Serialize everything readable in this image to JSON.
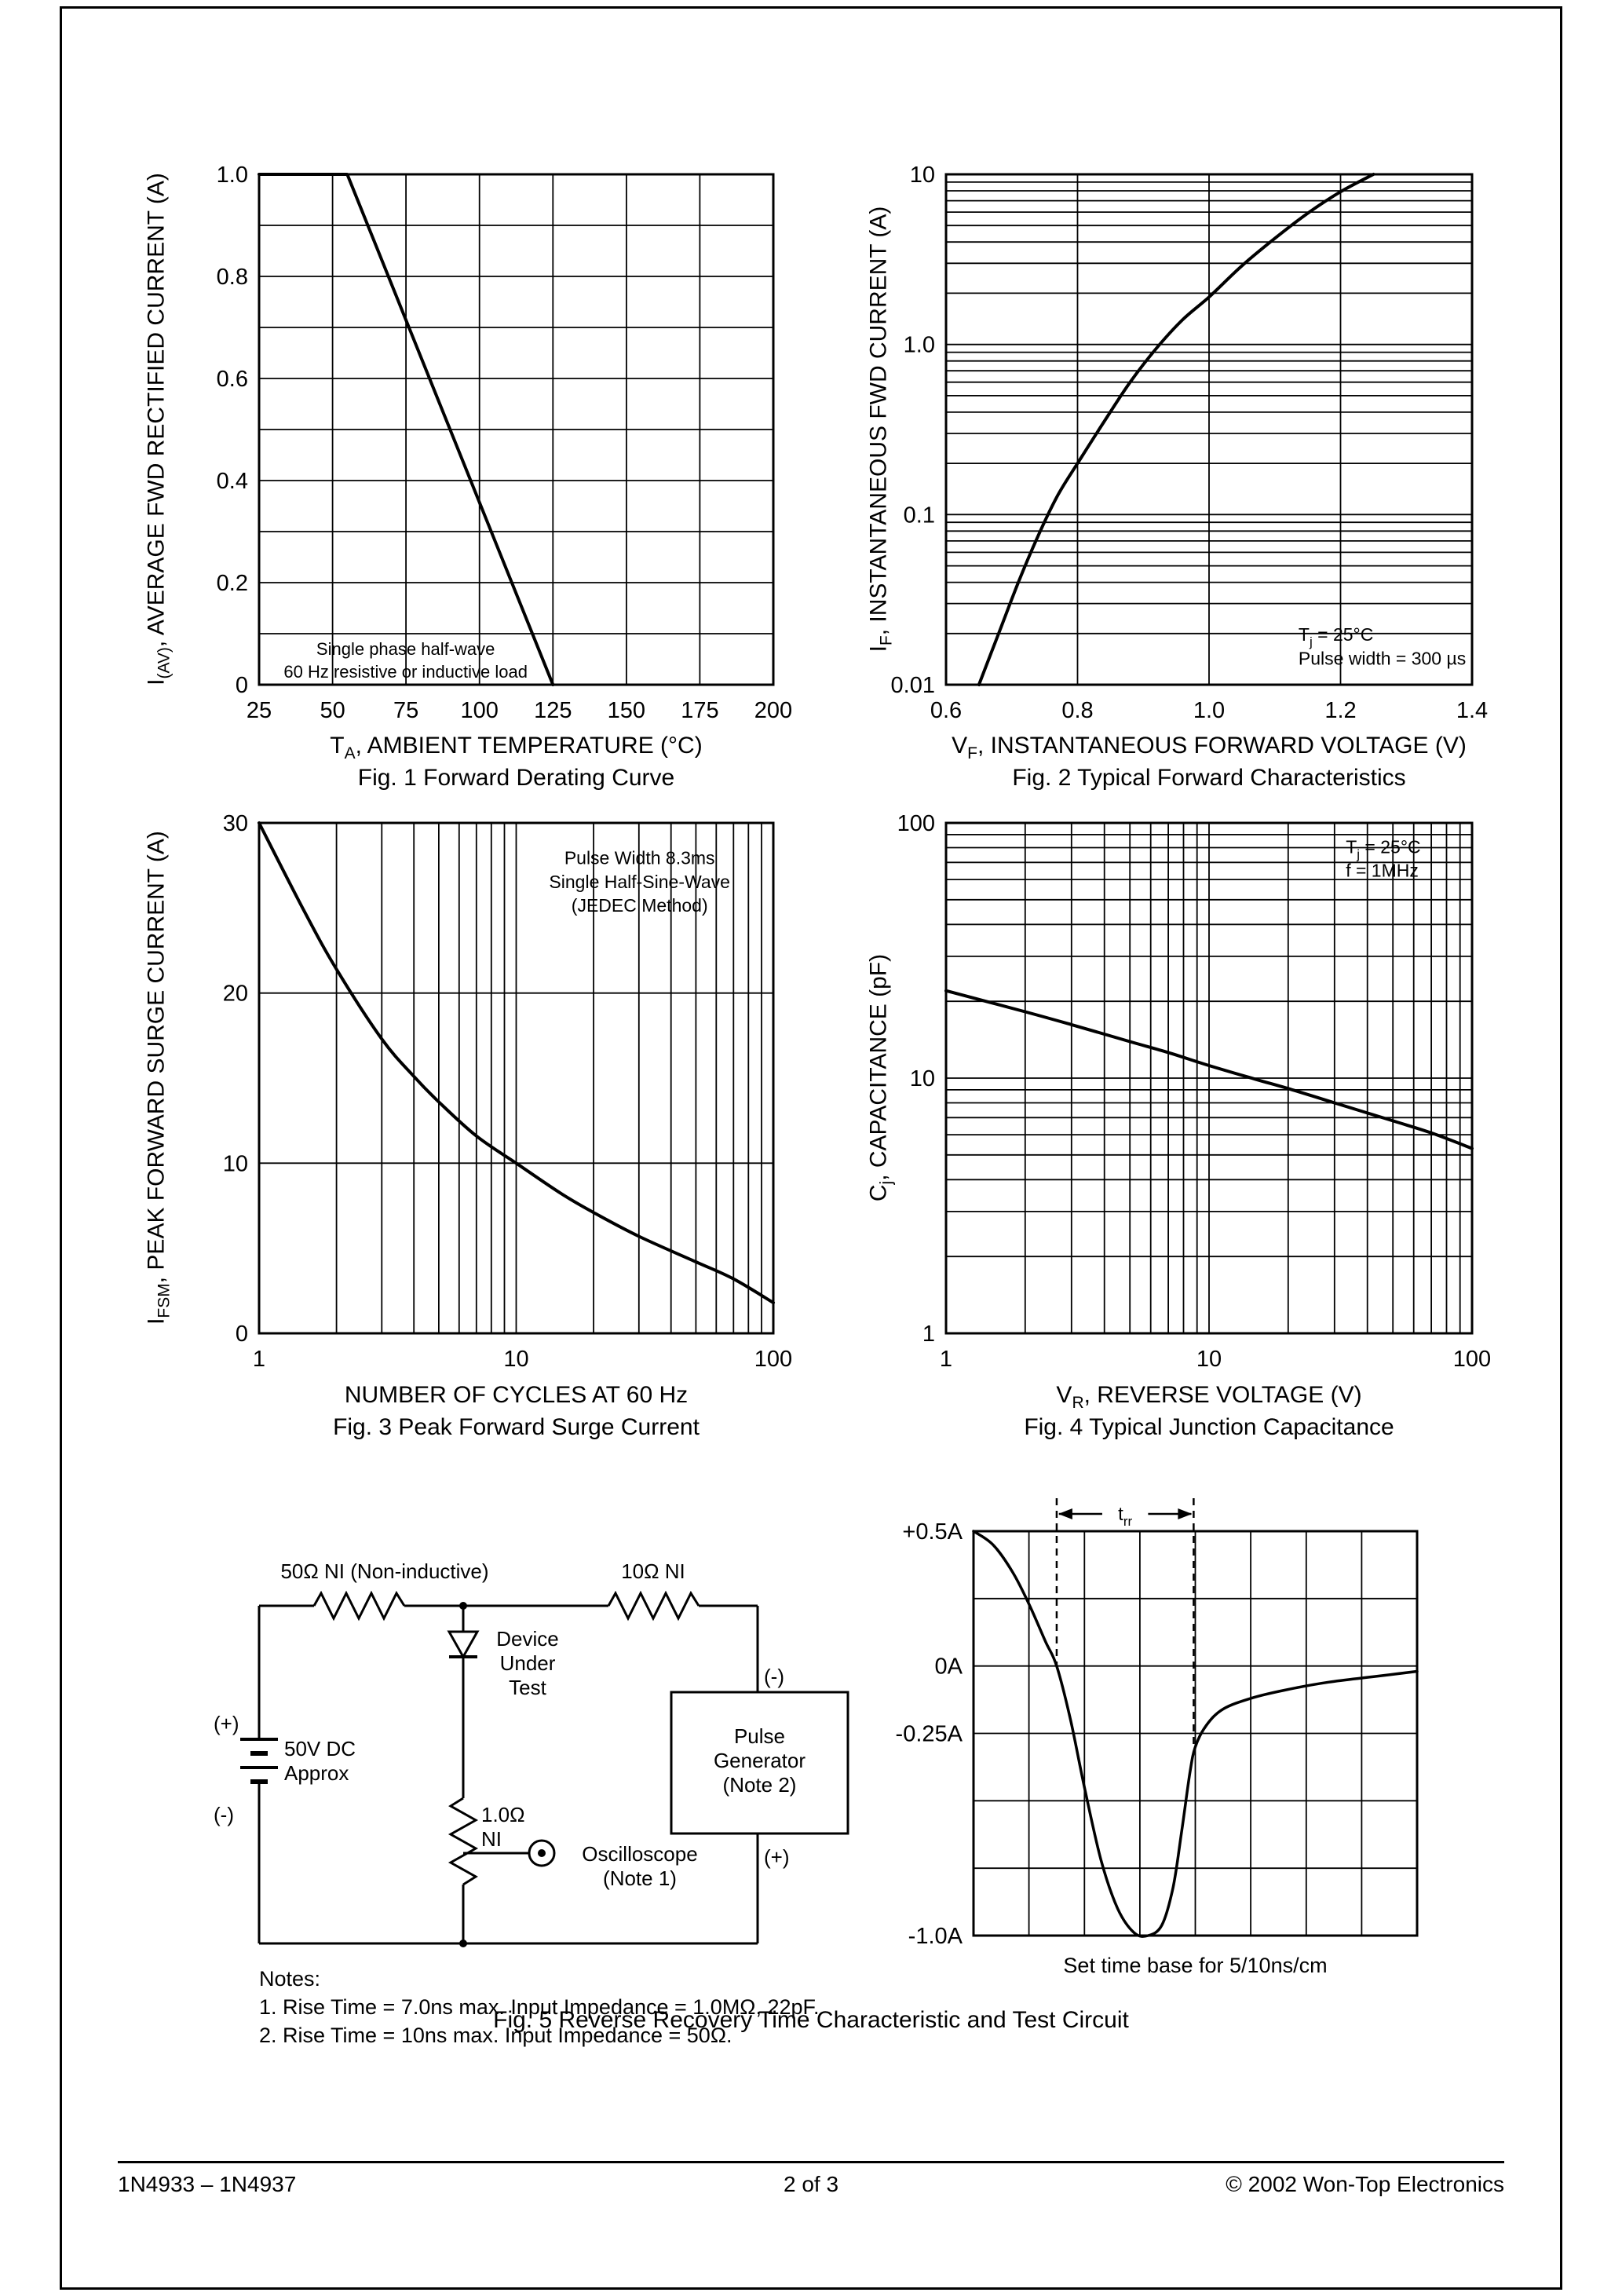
{
  "page": {
    "footer_left": "1N4933 – 1N4937",
    "footer_center": "2 of 3",
    "footer_right": "© 2002 Won-Top Electronics"
  },
  "fig1": {
    "y_title": {
      "pre": "I",
      "sub": "(AV)",
      "post": ", AVERAGE FWD RECTIFIED CURRENT (A)"
    },
    "x_title": {
      "pre": "T",
      "sub": "A",
      "post": ", AMBIENT TEMPERATURE (°C)"
    },
    "caption": "Fig. 1  Forward Derating Curve"
  },
  "fig2": {
    "y_title": {
      "pre": "I",
      "sub": "F",
      "post": ", INSTANTANEOUS FWD CURRENT (A)"
    },
    "x_title": {
      "pre": "V",
      "sub": "F",
      "post": ", INSTANTANEOUS FORWARD VOLTAGE (V)"
    },
    "caption": "Fig. 2  Typical Forward Characteristics"
  },
  "fig3": {
    "y_title": {
      "pre": "I",
      "sub": "FSM",
      "post": ", PEAK FORWARD SURGE CURRENT (A)"
    },
    "x_title": {
      "pre": "",
      "sub": "",
      "post": "NUMBER OF CYCLES AT 60 Hz"
    },
    "caption": "Fig. 3  Peak Forward Surge Current"
  },
  "fig4": {
    "y_title": {
      "pre": "C",
      "sub": "j",
      "post": ", CAPACITANCE (pF)"
    },
    "x_title": {
      "pre": "V",
      "sub": "R",
      "post": ", REVERSE VOLTAGE (V)"
    },
    "caption": "Fig. 4  Typical Junction Capacitance"
  },
  "fig5": {
    "caption": "Fig. 5  Reverse Recovery Time Characteristic and Test Circuit",
    "wave_caption": "Set time base for 5/10ns/cm",
    "circuit": {
      "r1": "50Ω NI (Non-inductive)",
      "r2": "10Ω NI",
      "dut": "Device\nUnder\nTest",
      "battery": "50V DC\nApprox",
      "plus_left": "(+)",
      "minus_left": "(-)",
      "minus_right": "(-)",
      "plus_right": "(+)",
      "pulse_gen": "Pulse\nGenerator\n(Note 2)",
      "r3": "1.0Ω\nNI",
      "scope": "Oscilloscope\n(Note 1)",
      "notes_title": "Notes:",
      "note1": "1. Rise Time = 7.0ns max. Input Impedance = 1.0MΩ, 22pF.",
      "note2": "2. Rise Time = 10ns max. Input Impedance = 50Ω."
    }
  },
  "chart_data": [
    {
      "id": "fig1",
      "type": "line",
      "title": "Fig. 1 Forward Derating Curve",
      "xlabel": "TA, AMBIENT TEMPERATURE (°C)",
      "ylabel": "I(AV), AVERAGE FWD RECTIFIED CURRENT (A)",
      "x": {
        "scale": "linear",
        "min": 25,
        "max": 200,
        "grid_step": 25,
        "ticks": [
          25,
          50,
          75,
          100,
          125,
          150,
          175,
          200
        ]
      },
      "y": {
        "scale": "linear",
        "min": 0,
        "max": 1,
        "grid_step": 0.1,
        "ticks": [
          {
            "v": 0,
            "t": "0"
          },
          {
            "v": 0.2,
            "t": "0.2"
          },
          {
            "v": 0.4,
            "t": "0.4"
          },
          {
            "v": 0.6,
            "t": "0.6"
          },
          {
            "v": 0.8,
            "t": "0.8"
          },
          {
            "v": 1,
            "t": "1.0"
          }
        ]
      },
      "smooth": false,
      "series": [
        {
          "name": "max-average-forward-current",
          "points": [
            [
              25,
              1
            ],
            [
              55,
              1
            ],
            [
              125,
              0
            ]
          ]
        }
      ],
      "annotations": [
        {
          "fx": 0.285,
          "fy": 0.048,
          "align": "center",
          "size": 22,
          "lines": [
            "Single phase half-wave",
            "60 Hz resistive or inductive load"
          ]
        }
      ]
    },
    {
      "id": "fig2",
      "type": "line",
      "title": "Fig. 2 Typical Forward Characteristics",
      "xlabel": "VF, INSTANTANEOUS FORWARD VOLTAGE (V)",
      "ylabel": "IF, INSTANTANEOUS FWD CURRENT (A)",
      "x": {
        "scale": "linear",
        "min": 0.6,
        "max": 1.4,
        "grid_step": 0.2,
        "ticks": [
          {
            "v": 0.6,
            "t": "0.6"
          },
          {
            "v": 0.8,
            "t": "0.8"
          },
          {
            "v": 1,
            "t": "1.0"
          },
          {
            "v": 1.2,
            "t": "1.2"
          },
          {
            "v": 1.4,
            "t": "1.4"
          }
        ]
      },
      "y": {
        "scale": "log",
        "min": 0.01,
        "max": 10,
        "ticks": [
          {
            "v": 10,
            "t": "10"
          },
          {
            "v": 1,
            "t": "1.0"
          },
          {
            "v": 0.1,
            "t": "0.1"
          },
          {
            "v": 0.01,
            "t": "0.01"
          }
        ]
      },
      "smooth": true,
      "series": [
        {
          "name": "typical-forward-characteristic",
          "points": [
            [
              0.65,
              0.01
            ],
            [
              0.68,
              0.02
            ],
            [
              0.71,
              0.04
            ],
            [
              0.74,
              0.075
            ],
            [
              0.77,
              0.13
            ],
            [
              0.8,
              0.2
            ],
            [
              0.84,
              0.35
            ],
            [
              0.88,
              0.6
            ],
            [
              0.92,
              0.95
            ],
            [
              0.96,
              1.4
            ],
            [
              1.0,
              1.9
            ],
            [
              1.05,
              2.9
            ],
            [
              1.1,
              4.2
            ],
            [
              1.15,
              5.9
            ],
            [
              1.2,
              7.9
            ],
            [
              1.25,
              10
            ]
          ]
        }
      ],
      "annotations": [
        {
          "fx": 0.67,
          "fy": 0.075,
          "align": "left",
          "size": 23,
          "lines": [
            "T_j_ = 25°C",
            "Pulse width = 300 µs"
          ]
        }
      ]
    },
    {
      "id": "fig3",
      "type": "line",
      "title": "Fig. 3 Peak Forward Surge Current",
      "xlabel": "NUMBER OF CYCLES AT 60 Hz",
      "ylabel": "IFSM, PEAK FORWARD SURGE CURRENT (A)",
      "x": {
        "scale": "log",
        "min": 1,
        "max": 100,
        "ticks": [
          {
            "v": 1,
            "t": "1"
          },
          {
            "v": 10,
            "t": "10"
          },
          {
            "v": 100,
            "t": "100"
          }
        ]
      },
      "y": {
        "scale": "linear",
        "min": 0,
        "max": 30,
        "grid_step": 10,
        "ticks": [
          {
            "v": 0,
            "t": "0"
          },
          {
            "v": 10,
            "t": "10"
          },
          {
            "v": 20,
            "t": "20"
          },
          {
            "v": 30,
            "t": "30"
          }
        ]
      },
      "smooth": true,
      "series": [
        {
          "name": "peak-forward-surge-current",
          "points": [
            [
              1,
              30
            ],
            [
              1.5,
              24.8
            ],
            [
              2,
              21.4
            ],
            [
              3,
              17.3
            ],
            [
              4,
              15.1
            ],
            [
              5,
              13.6
            ],
            [
              7,
              11.6
            ],
            [
              10,
              10
            ],
            [
              15,
              8.2
            ],
            [
              20,
              7.1
            ],
            [
              30,
              5.7
            ],
            [
              50,
              4.2
            ],
            [
              70,
              3.2
            ],
            [
              100,
              1.8
            ]
          ]
        }
      ],
      "annotations": [
        {
          "fx": 0.74,
          "fy": 0.885,
          "align": "center",
          "size": 23,
          "lines": [
            "Pulse Width 8.3ms",
            "Single Half-Sine-Wave",
            "(JEDEC Method)"
          ]
        }
      ]
    },
    {
      "id": "fig4",
      "type": "line",
      "title": "Fig. 4 Typical Junction Capacitance",
      "xlabel": "VR, REVERSE VOLTAGE (V)",
      "ylabel": "Cj, CAPACITANCE (pF)",
      "x": {
        "scale": "log",
        "min": 1,
        "max": 100,
        "ticks": [
          {
            "v": 1,
            "t": "1"
          },
          {
            "v": 10,
            "t": "10"
          },
          {
            "v": 100,
            "t": "100"
          }
        ]
      },
      "y": {
        "scale": "log",
        "min": 1,
        "max": 100,
        "ticks": [
          {
            "v": 100,
            "t": "100"
          },
          {
            "v": 10,
            "t": "10"
          },
          {
            "v": 1,
            "t": "1"
          }
        ]
      },
      "smooth": true,
      "series": [
        {
          "name": "typical-junction-capacitance",
          "points": [
            [
              1,
              22
            ],
            [
              2,
              18.2
            ],
            [
              3,
              16.2
            ],
            [
              5,
              13.9
            ],
            [
              7,
              12.6
            ],
            [
              10,
              11.2
            ],
            [
              15,
              9.9
            ],
            [
              20,
              9.1
            ],
            [
              30,
              8
            ],
            [
              50,
              6.8
            ],
            [
              70,
              6.1
            ],
            [
              100,
              5.3
            ]
          ]
        }
      ],
      "annotations": [
        {
          "fx": 0.76,
          "fy": 0.93,
          "align": "left",
          "size": 23,
          "lines": [
            "T_j_ = 25°C",
            "f = 1MHz"
          ]
        }
      ]
    },
    {
      "id": "wave",
      "type": "line",
      "title": "Reverse Recovery Time Characteristic",
      "xlabel": "Set time base for 5/10ns/cm",
      "ylabel": "",
      "x": {
        "scale": "linear",
        "min": 0,
        "max": 8,
        "grid_step": 1,
        "ticks": []
      },
      "y": {
        "scale": "linear",
        "min": -1,
        "max": 0.5,
        "grid_step": 0.25,
        "ticks": [
          {
            "v": 0.5,
            "t": "+0.5A"
          },
          {
            "v": 0,
            "t": "0A"
          },
          {
            "v": -0.25,
            "t": "-0.25A"
          },
          {
            "v": -1,
            "t": "-1.0A"
          }
        ]
      },
      "smooth": true,
      "series": [
        {
          "name": "reverse-recovery-current",
          "width": 3.5,
          "points": [
            [
              0,
              0.5
            ],
            [
              0.35,
              0.45
            ],
            [
              0.7,
              0.35
            ],
            [
              1.0,
              0.23
            ],
            [
              1.3,
              0.09
            ],
            [
              1.5,
              0
            ],
            [
              1.75,
              -0.2
            ],
            [
              2.0,
              -0.45
            ],
            [
              2.3,
              -0.72
            ],
            [
              2.6,
              -0.9
            ],
            [
              2.9,
              -0.99
            ],
            [
              3.15,
              -1
            ],
            [
              3.4,
              -0.96
            ],
            [
              3.6,
              -0.82
            ],
            [
              3.75,
              -0.62
            ],
            [
              3.9,
              -0.4
            ],
            [
              4.0,
              -0.3
            ],
            [
              4.2,
              -0.22
            ],
            [
              4.5,
              -0.16
            ],
            [
              5.0,
              -0.12
            ],
            [
              5.6,
              -0.09
            ],
            [
              6.4,
              -0.06
            ],
            [
              7.2,
              -0.04
            ],
            [
              8,
              -0.02
            ]
          ]
        }
      ],
      "markers": {
        "x1": 1.5,
        "x1_to": 0,
        "x2": 3.97,
        "x2_to": -0.3,
        "label": "t_rr_"
      }
    }
  ]
}
